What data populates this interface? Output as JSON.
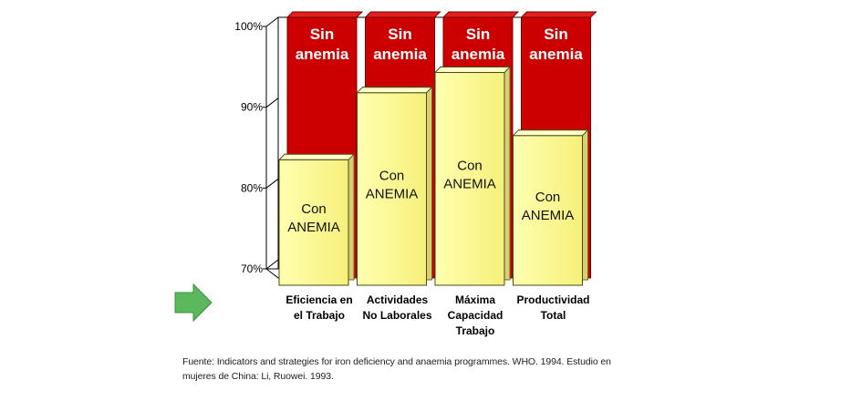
{
  "chart_data": {
    "type": "bar",
    "categories": [
      "Eficiencia en el Trabajo",
      "Actividades No Laborales",
      "Máxima Capacidad Trabajo",
      "Productividad Total"
    ],
    "category_lines": [
      [
        "Eficiencia en",
        "el Trabajo"
      ],
      [
        "Actividades",
        "No Laborales"
      ],
      [
        "Máxima",
        "Capacidad",
        "Trabajo"
      ],
      [
        "Productividad",
        "Total"
      ]
    ],
    "series": [
      {
        "name": "Con ANEMIA",
        "name_lines": [
          "Con",
          "ANEMIA"
        ],
        "values": [
          83.5,
          91.8,
          94.3,
          86.5
        ],
        "color": "#ffff99"
      },
      {
        "name": "Sin anemia",
        "name_lines": [
          "Sin",
          "anemia"
        ],
        "values": [
          100,
          100,
          100,
          100
        ],
        "color": "#cc0000"
      }
    ],
    "ylim": [
      70,
      100
    ],
    "yticks": [
      70,
      80,
      90,
      100
    ],
    "ytick_labels": [
      "70%",
      "80%",
      "90%",
      "100%"
    ],
    "grid": false,
    "legend": "none"
  },
  "source_note": "Fuente: Indicators and strategies for iron deficiency and anaemia programmes. WHO. 1994. Estudio en mujeres de China: Li, Ruowei. 1993.",
  "colors": {
    "arrow": "#5cb85c",
    "frame": "#000000"
  },
  "icons": {
    "pointer": "right-arrow-icon"
  }
}
